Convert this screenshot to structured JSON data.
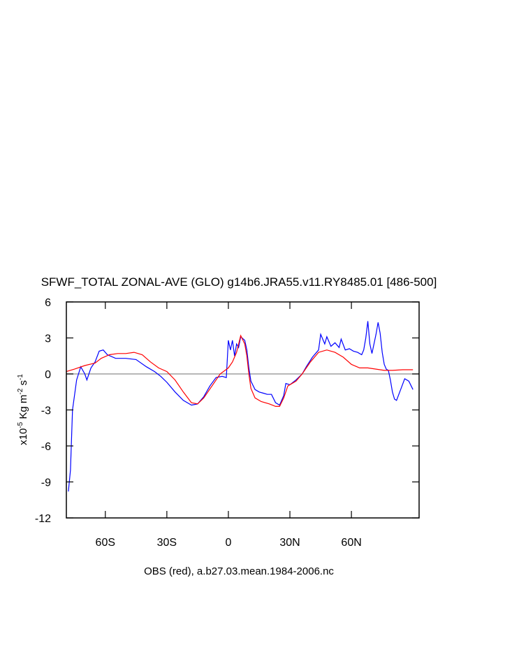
{
  "chart_data": {
    "type": "line",
    "title": "SFWF_TOTAL ZONAL-AVE (GLO) g14b6.JRA55.v11.RY8485.01 [486-500]",
    "ylabel_parts": [
      "x10",
      "-5",
      " Kg m",
      "-2",
      " s",
      "-1"
    ],
    "xlabel": "OBS (red), a.b27.03.mean.1984-2006.nc",
    "xlim": [
      -79,
      93
    ],
    "xticks": [
      {
        "value": -60,
        "label": "60S"
      },
      {
        "value": -30,
        "label": "30S"
      },
      0,
      {
        "value": 30,
        "label": "30N"
      },
      {
        "value": 60,
        "label": "60N"
      }
    ],
    "ylim": [
      -12,
      6
    ],
    "yticks": [
      6,
      3,
      0,
      -3,
      -6,
      -9,
      -12
    ],
    "hline": 0,
    "series": [
      {
        "color": "#0000ff",
        "x": [
          -78,
          -77,
          -76,
          -74,
          -72,
          -70,
          -69,
          -67,
          -65,
          -63,
          -61,
          -59,
          -55,
          -50,
          -45,
          -40,
          -36,
          -33,
          -30,
          -26,
          -22,
          -18,
          -15,
          -12,
          -9,
          -6,
          -3,
          -1,
          0,
          1,
          2,
          3,
          4,
          5,
          6,
          8,
          9,
          10,
          11,
          13,
          15,
          17,
          19,
          21,
          23,
          25,
          27,
          28,
          30,
          33,
          36,
          38,
          41,
          44,
          45,
          47,
          48,
          50,
          52,
          54,
          55,
          57,
          59,
          61,
          63,
          65,
          66,
          67,
          68,
          69,
          70,
          71,
          72,
          73,
          74,
          75,
          76,
          77,
          78,
          79,
          80,
          81,
          82,
          84,
          86,
          88,
          90
        ],
        "values": [
          -9.8,
          -8,
          -3,
          -0.5,
          0.6,
          0,
          -0.5,
          0.5,
          1.0,
          1.9,
          2.0,
          1.6,
          1.3,
          1.3,
          1.2,
          0.6,
          0.2,
          -0.2,
          -0.7,
          -1.5,
          -2.2,
          -2.6,
          -2.5,
          -1.9,
          -1.0,
          -0.3,
          -0.2,
          -0.3,
          2.8,
          2.0,
          2.8,
          1.5,
          2.5,
          2.2,
          3.1,
          2.8,
          2.0,
          0.5,
          -0.6,
          -1.3,
          -1.5,
          -1.6,
          -1.7,
          -1.7,
          -2.4,
          -2.6,
          -1.8,
          -0.8,
          -0.9,
          -0.5,
          0,
          0.6,
          1.4,
          2.0,
          3.3,
          2.5,
          3.1,
          2.3,
          2.6,
          2.2,
          2.9,
          2.0,
          2.1,
          1.9,
          1.8,
          1.6,
          2.0,
          3.0,
          4.4,
          2.5,
          1.7,
          2.5,
          3.3,
          4.3,
          3.4,
          1.8,
          0.8,
          0.4,
          0.3,
          -0.5,
          -1.5,
          -2.1,
          -2.2,
          -1.3,
          -0.4,
          -0.6,
          -1.3
        ]
      },
      {
        "color": "#ff0000",
        "x": [
          -79,
          -75,
          -70,
          -65,
          -62,
          -58,
          -54,
          -50,
          -46,
          -42,
          -38,
          -34,
          -30,
          -26,
          -22,
          -18,
          -15,
          -12,
          -8,
          -4,
          0,
          2,
          4,
          6,
          8,
          9,
          10,
          11,
          13,
          16,
          20,
          23,
          25,
          27,
          29,
          33,
          36,
          40,
          44,
          48,
          52,
          56,
          60,
          64,
          68,
          72,
          76,
          80,
          85,
          90
        ],
        "values": [
          0.2,
          0.4,
          0.7,
          0.9,
          1.3,
          1.6,
          1.7,
          1.7,
          1.8,
          1.6,
          1.0,
          0.5,
          0.2,
          -0.5,
          -1.5,
          -2.4,
          -2.5,
          -2.0,
          -1.0,
          0,
          0.5,
          1.0,
          1.8,
          3.2,
          2.5,
          1.5,
          0,
          -1.2,
          -2.0,
          -2.3,
          -2.5,
          -2.7,
          -2.7,
          -2.0,
          -1.0,
          -0.6,
          0,
          1.0,
          1.8,
          2.0,
          1.8,
          1.4,
          0.8,
          0.5,
          0.5,
          0.4,
          0.3,
          0.3,
          0.35,
          0.35
        ]
      }
    ]
  }
}
